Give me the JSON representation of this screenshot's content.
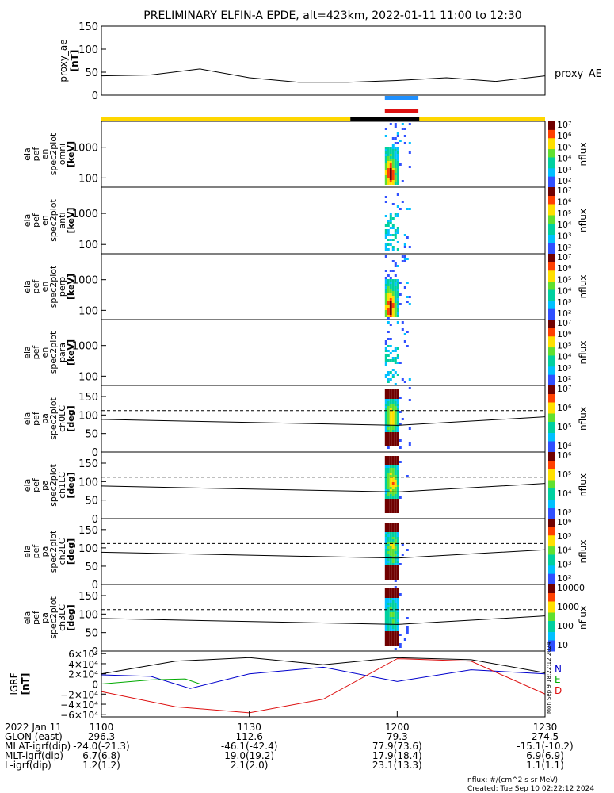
{
  "title": "PRELIMINARY ELFIN-A EPDE, alt=423km, 2022-01-11 11:00 to 12:30",
  "time_range": {
    "start": "11:00",
    "end": "12:30"
  },
  "colors": {
    "orbit_bar": "#ffd700",
    "science_zone": "#000000",
    "blue": "#1e90ff",
    "red": "#dd1111",
    "nflux_max": "#800000",
    "bx": "#0000cc",
    "by": "#00aa00",
    "bz": "#dd1111",
    "bmag": "#000000"
  },
  "chart_data": [
    {
      "type": "line",
      "name": "proxy_ae",
      "ylabel": [
        "proxy_ae",
        "[nT]"
      ],
      "series_label": "proxy_AE",
      "ylim": [
        0,
        150
      ],
      "yticks": [
        "150",
        "100",
        "50",
        "0"
      ],
      "ytick_values": [
        150,
        100,
        50,
        0
      ],
      "x_min": [
        0,
        10,
        20,
        30,
        40,
        50,
        60,
        70,
        80,
        90
      ],
      "y": [
        42,
        44,
        57,
        38,
        28,
        28,
        32,
        38,
        30,
        42
      ]
    },
    {
      "type": "bars",
      "name": "mode_bars",
      "segments": [
        {
          "start_min": 57.5,
          "end_min": 64.3,
          "color": "blue"
        },
        {
          "start_min": 57.5,
          "end_min": 64.3,
          "color": "red"
        }
      ],
      "orbit_bar": [
        {
          "start_min": 0,
          "end_min": 50.5,
          "color": "orbit_bar"
        },
        {
          "start_min": 50.5,
          "end_min": 64.5,
          "color": "science_zone"
        },
        {
          "start_min": 64.5,
          "end_min": 90,
          "color": "orbit_bar"
        }
      ]
    },
    {
      "type": "heatmap",
      "name": "energy_omni",
      "ylabel": [
        "ela",
        "pef",
        "en",
        "spec2plot",
        "omni",
        "[keV]"
      ],
      "ylim": [
        50,
        7000
      ],
      "yscale": "log",
      "yticks": [
        "1000",
        "100"
      ],
      "ytick_values": [
        1000,
        100
      ],
      "colorbar": {
        "label": "nflux",
        "ticks": [
          "10²",
          "10³",
          "10⁴",
          "10⁵",
          "10⁶",
          "10⁷"
        ],
        "scale": "log"
      },
      "data_window_min": [
        57.5,
        62.5
      ]
    },
    {
      "type": "heatmap",
      "name": "energy_anti",
      "ylabel": [
        "ela",
        "pef",
        "en",
        "spec2plot",
        "anti",
        "[keV]"
      ],
      "ylim": [
        50,
        7000
      ],
      "yscale": "log",
      "yticks": [
        "1000",
        "100"
      ],
      "ytick_values": [
        1000,
        100
      ],
      "colorbar": {
        "label": "nflux",
        "ticks": [
          "10²",
          "10³",
          "10⁴",
          "10⁵",
          "10⁶",
          "10⁷"
        ],
        "scale": "log"
      },
      "data_window_min": [
        57.5,
        62.5
      ]
    },
    {
      "type": "heatmap",
      "name": "energy_perp",
      "ylabel": [
        "ela",
        "pef",
        "en",
        "spec2plot",
        "perp",
        "[keV]"
      ],
      "ylim": [
        50,
        7000
      ],
      "yscale": "log",
      "yticks": [
        "1000",
        "100"
      ],
      "ytick_values": [
        1000,
        100
      ],
      "colorbar": {
        "label": "nflux",
        "ticks": [
          "10²",
          "10³",
          "10⁴",
          "10⁵",
          "10⁶",
          "10⁷"
        ],
        "scale": "log"
      },
      "data_window_min": [
        57.5,
        62.5
      ]
    },
    {
      "type": "heatmap",
      "name": "energy_para",
      "ylabel": [
        "ela",
        "pef",
        "en",
        "spec2plot",
        "para",
        "[keV]"
      ],
      "ylim": [
        50,
        7000
      ],
      "yscale": "log",
      "yticks": [
        "1000",
        "100"
      ],
      "ytick_values": [
        1000,
        100
      ],
      "colorbar": {
        "label": "nflux",
        "ticks": [
          "10²",
          "10³",
          "10⁴",
          "10⁵",
          "10⁶",
          "10⁷"
        ],
        "scale": "log"
      },
      "data_window_min": [
        57.5,
        62.5
      ]
    },
    {
      "type": "heatmap",
      "name": "pa_ch0",
      "ylabel": [
        "ela",
        "pef",
        "pa",
        "spec2plot",
        "ch0LC",
        "[deg]"
      ],
      "ylim": [
        0,
        180
      ],
      "yticks": [
        "150",
        "100",
        "50",
        "0"
      ],
      "ytick_values": [
        150,
        100,
        50,
        0
      ],
      "colorbar": {
        "label": "nflux",
        "ticks": [
          "10⁴",
          "10⁵",
          "10⁶",
          "10⁷"
        ],
        "scale": "log"
      },
      "lines": {
        "solid": [
          [
            0,
            88
          ],
          [
            60,
            72
          ],
          [
            90,
            95
          ]
        ],
        "dashed": [
          [
            0,
            112
          ],
          [
            90,
            112
          ]
        ]
      },
      "data_window_min": [
        57.5,
        62.5
      ]
    },
    {
      "type": "heatmap",
      "name": "pa_ch1",
      "ylabel": [
        "ela",
        "pef",
        "pa",
        "spec2plot",
        "ch1LC",
        "[deg]"
      ],
      "ylim": [
        0,
        180
      ],
      "yticks": [
        "150",
        "100",
        "50",
        "0"
      ],
      "ytick_values": [
        150,
        100,
        50,
        0
      ],
      "colorbar": {
        "label": "nflux",
        "ticks": [
          "10³",
          "10⁴",
          "10⁵",
          "10⁶"
        ],
        "scale": "log"
      },
      "lines": {
        "solid": [
          [
            0,
            88
          ],
          [
            60,
            72
          ],
          [
            90,
            95
          ]
        ],
        "dashed": [
          [
            0,
            112
          ],
          [
            90,
            112
          ]
        ]
      },
      "data_window_min": [
        57.5,
        62.5
      ]
    },
    {
      "type": "heatmap",
      "name": "pa_ch2",
      "ylabel": [
        "ela",
        "pef",
        "pa",
        "spec2plot",
        "ch2LC",
        "[deg]"
      ],
      "ylim": [
        0,
        180
      ],
      "yticks": [
        "150",
        "100",
        "50",
        "0"
      ],
      "ytick_values": [
        150,
        100,
        50,
        0
      ],
      "colorbar": {
        "label": "nflux",
        "ticks": [
          "10²",
          "10³",
          "10⁴",
          "10⁵",
          "10⁶"
        ],
        "scale": "log"
      },
      "lines": {
        "solid": [
          [
            0,
            88
          ],
          [
            60,
            72
          ],
          [
            90,
            95
          ]
        ],
        "dashed": [
          [
            0,
            112
          ],
          [
            90,
            112
          ]
        ]
      },
      "data_window_min": [
        57.5,
        62.5
      ]
    },
    {
      "type": "heatmap",
      "name": "pa_ch3",
      "ylabel": [
        "ela",
        "pef",
        "pa",
        "spec2plot",
        "ch3LC",
        "[deg]"
      ],
      "ylim": [
        0,
        180
      ],
      "yticks": [
        "150",
        "100",
        "50",
        "0"
      ],
      "ytick_values": [
        150,
        100,
        50,
        0
      ],
      "colorbar": {
        "label": "nflux",
        "ticks": [
          "10",
          "100",
          "1000",
          "10000"
        ],
        "scale": "log"
      },
      "lines": {
        "solid": [
          [
            0,
            88
          ],
          [
            60,
            72
          ],
          [
            90,
            95
          ]
        ],
        "dashed": [
          [
            0,
            112
          ],
          [
            90,
            112
          ]
        ]
      },
      "data_window_min": [
        57.5,
        62.5
      ]
    },
    {
      "type": "line",
      "name": "igrf",
      "ylabel": [
        "IGRF",
        "[nT]"
      ],
      "ylim": [
        -65000,
        65000
      ],
      "yticks": [
        "6×10⁴",
        "4×10⁴",
        "2×10⁴",
        "0",
        "−2×10⁴",
        "−4×10⁴",
        "−6×10⁴"
      ],
      "ytick_values": [
        60000,
        40000,
        20000,
        0,
        -20000,
        -40000,
        -60000
      ],
      "legend": [
        "N",
        "E",
        "D"
      ],
      "stamp": "Mon Sep 9 18:22:12 2024",
      "series": [
        {
          "name": "N",
          "color": "bx",
          "x_min": [
            0,
            10,
            18,
            30,
            45,
            60,
            75,
            90
          ],
          "y": [
            18000,
            15000,
            -9000,
            20000,
            33000,
            5000,
            28000,
            20000
          ]
        },
        {
          "name": "E",
          "color": "by",
          "x_min": [
            0,
            10,
            17,
            20,
            30,
            60,
            90
          ],
          "y": [
            0,
            8000,
            10000,
            0,
            0,
            0,
            0
          ]
        },
        {
          "name": "D",
          "color": "bz",
          "x_min": [
            0,
            15,
            30,
            45,
            60,
            75,
            90
          ],
          "y": [
            -15000,
            -45000,
            -57000,
            -30000,
            50000,
            45000,
            -20000
          ]
        },
        {
          "name": "|B|",
          "color": "bmag",
          "x_min": [
            0,
            15,
            30,
            45,
            60,
            75,
            90
          ],
          "y": [
            20000,
            45000,
            52000,
            38000,
            52000,
            48000,
            22000
          ]
        }
      ]
    }
  ],
  "xaxis": {
    "ticks_min": [
      0,
      30,
      60,
      90
    ],
    "rows": [
      {
        "label": "2022 Jan 11",
        "values": [
          "1100",
          "1130",
          "1200",
          "1230"
        ]
      },
      {
        "label": "GLON (east)",
        "values": [
          "296.3",
          "112.6",
          "79.3",
          "274.5"
        ]
      },
      {
        "label": "MLAT-igrf(dip)",
        "values": [
          "-24.0(-21.3)",
          "-46.1(-42.4)",
          "77.9(73.6)",
          "-15.1(-10.2)"
        ]
      },
      {
        "label": "MLT-igrf(dip)",
        "values": [
          "6.7(6.8)",
          "19.0(19.2)",
          "17.9(18.4)",
          "6.9(6.9)"
        ]
      },
      {
        "label": "L-igrf(dip)",
        "values": [
          "1.2(1.2)",
          "2.1(2.0)",
          "23.1(13.3)",
          "1.1(1.1)"
        ]
      }
    ]
  },
  "footer": {
    "units": "nflux: #/(cm^2 s sr MeV)",
    "created": "Created: Tue Sep 10 02:22:12 2024"
  }
}
